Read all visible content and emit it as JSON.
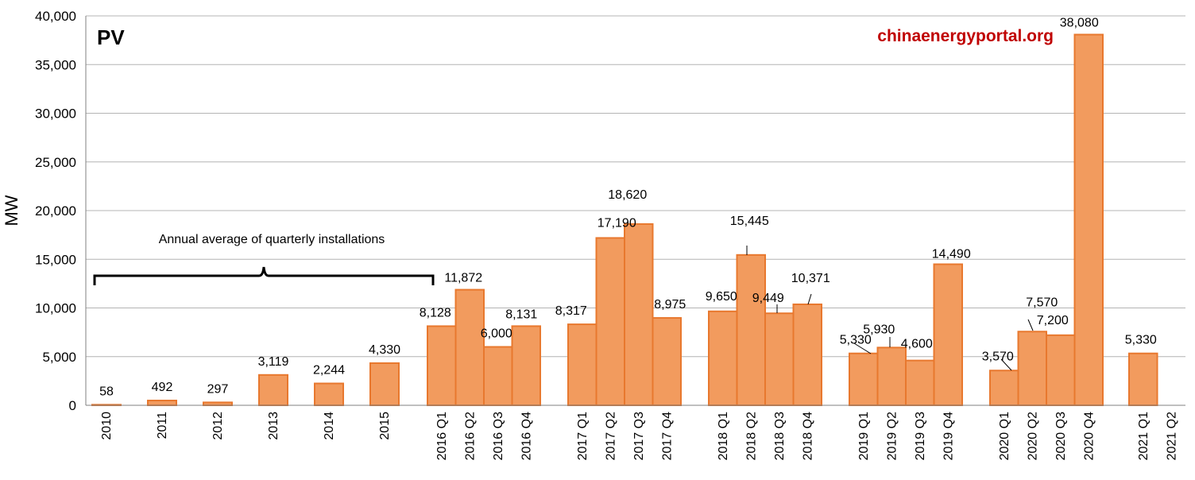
{
  "chart_data": {
    "type": "bar",
    "title": "PV",
    "source": "chinaenergyportal.org",
    "ylabel": "MW",
    "xlabel": "",
    "ylim": [
      0,
      40000
    ],
    "yticks": [
      0,
      5000,
      10000,
      15000,
      20000,
      25000,
      30000,
      35000,
      40000
    ],
    "ytick_labels": [
      "0",
      "5,000",
      "10,000",
      "15,000",
      "20,000",
      "25,000",
      "30,000",
      "35,000",
      "40,000"
    ],
    "grid": true,
    "bar_color": "#F29B5E",
    "bar_edge_color": "#E8782E",
    "source_color": "#C00000",
    "annotation": "Annual average of quarterly installations",
    "categories": [
      "2010",
      "2011",
      "2012",
      "2013",
      "2014",
      "2015",
      "2016 Q1",
      "2016 Q2",
      "2016 Q3",
      "2016 Q4",
      "2017 Q1",
      "2017 Q2",
      "2017 Q3",
      "2017 Q4",
      "2018 Q1",
      "2018 Q2",
      "2018 Q3",
      "2018 Q4",
      "2019 Q1",
      "2019 Q2",
      "2019 Q3",
      "2019 Q4",
      "2020 Q1",
      "2020 Q2",
      "2020 Q3",
      "2020 Q4",
      "2021 Q1",
      "2021 Q2"
    ],
    "values": [
      58,
      492,
      297,
      3119,
      2244,
      4330,
      8128,
      11872,
      6000,
      8131,
      8317,
      17190,
      18620,
      8975,
      9650,
      15445,
      9449,
      10371,
      5330,
      5930,
      4600,
      14490,
      3570,
      7570,
      7200,
      38080,
      5330,
      null
    ],
    "value_labels": [
      "58",
      "492",
      "297",
      "3,119",
      "2,244",
      "4,330",
      "8,128",
      "11,872",
      "6,000",
      "8,131",
      "8,317",
      "17,190",
      "18,620",
      "8,975",
      "9,650",
      "15,445",
      "9,449",
      "10,371",
      "5,330",
      "5,930",
      "4,600",
      "14,490",
      "3,570",
      "7,570",
      "7,200",
      "38,080",
      "5,330",
      ""
    ]
  }
}
